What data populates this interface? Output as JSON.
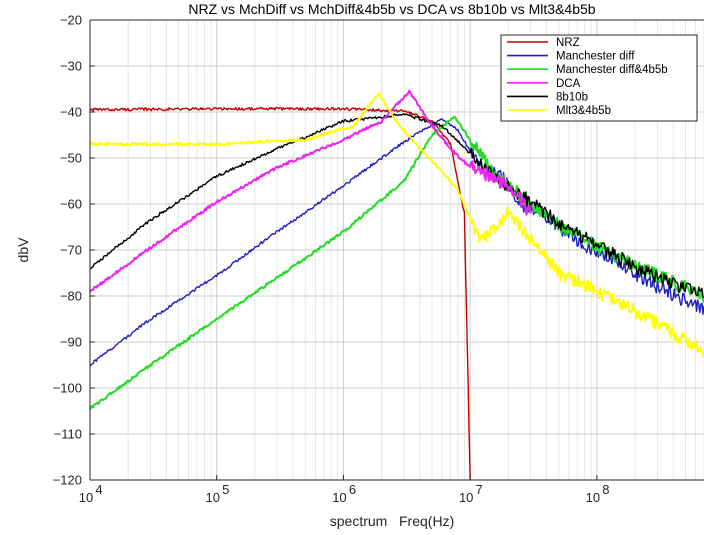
{
  "chart_data": {
    "type": "line",
    "title": "NRZ vs MchDiff vs MchDiff&4b5b vs DCA vs 8b10b vs Mlt3&4b5b",
    "xlabel": "spectrum   Freq(Hz)",
    "ylabel": "dbV",
    "xscale": "log",
    "xlim": [
      10000,
      700000000
    ],
    "ylim": [
      -120,
      -20
    ],
    "yticks": [
      -120,
      -110,
      -100,
      -90,
      -80,
      -70,
      -60,
      -50,
      -40,
      -30,
      -20
    ],
    "xticks": [
      {
        "value": 10000,
        "base": "10",
        "exp": "4"
      },
      {
        "value": 100000,
        "base": "10",
        "exp": "5"
      },
      {
        "value": 1000000,
        "base": "10",
        "exp": "6"
      },
      {
        "value": 10000000,
        "base": "10",
        "exp": "7"
      },
      {
        "value": 100000000,
        "base": "10",
        "exp": "8"
      }
    ],
    "grid": true,
    "legend_position": "top-right",
    "series": [
      {
        "name": "NRZ",
        "color": "#c00000",
        "points": [
          [
            10000,
            -39.5
          ],
          [
            100000,
            -39.3
          ],
          [
            1000000,
            -39.3
          ],
          [
            3000000,
            -39.8
          ],
          [
            5000000,
            -42
          ],
          [
            7000000,
            -47
          ],
          [
            9000000,
            -62
          ],
          [
            10000000,
            -120
          ]
        ]
      },
      {
        "name": "Manchester diff",
        "color": "#1f1fbf",
        "points": [
          [
            10000,
            -95
          ],
          [
            30000,
            -85
          ],
          [
            100000,
            -75.5
          ],
          [
            300000,
            -66
          ],
          [
            1000000,
            -56
          ],
          [
            3000000,
            -46.5
          ],
          [
            6000000,
            -41.5
          ],
          [
            8000000,
            -44
          ],
          [
            12000000,
            -52
          ],
          [
            18000000,
            -54
          ],
          [
            25000000,
            -60
          ],
          [
            40000000,
            -63
          ],
          [
            80000000,
            -69
          ],
          [
            150000000,
            -73
          ],
          [
            300000000,
            -78
          ],
          [
            700000000,
            -83
          ]
        ]
      },
      {
        "name": "Manchester diff&4b5b",
        "color": "#22dd22",
        "points": [
          [
            10000,
            -104.5
          ],
          [
            30000,
            -95
          ],
          [
            100000,
            -85
          ],
          [
            300000,
            -76
          ],
          [
            1000000,
            -66
          ],
          [
            3000000,
            -55
          ],
          [
            5000000,
            -45
          ],
          [
            7500000,
            -41
          ],
          [
            10000000,
            -46
          ],
          [
            15000000,
            -53
          ],
          [
            20000000,
            -56
          ],
          [
            30000000,
            -60
          ],
          [
            60000000,
            -66
          ],
          [
            150000000,
            -72
          ],
          [
            400000000,
            -77
          ],
          [
            700000000,
            -80
          ]
        ]
      },
      {
        "name": "DCA",
        "color": "#ee22ee",
        "points": [
          [
            10000,
            -79
          ],
          [
            30000,
            -69.5
          ],
          [
            100000,
            -59.5
          ],
          [
            300000,
            -52
          ],
          [
            1000000,
            -46
          ],
          [
            2000000,
            -42
          ],
          [
            3300000,
            -35.5
          ],
          [
            5000000,
            -43
          ],
          [
            7000000,
            -48
          ],
          [
            10000000,
            -52
          ],
          [
            14000000,
            -54
          ],
          [
            20000000,
            -56
          ],
          [
            30000000,
            -62
          ]
        ]
      },
      {
        "name": "8b10b",
        "color": "#000000",
        "points": [
          [
            10000,
            -74
          ],
          [
            30000,
            -63.5
          ],
          [
            100000,
            -54
          ],
          [
            300000,
            -48
          ],
          [
            1000000,
            -42
          ],
          [
            3000000,
            -40.5
          ],
          [
            6000000,
            -43
          ],
          [
            10000000,
            -49
          ],
          [
            15000000,
            -54
          ],
          [
            25000000,
            -58
          ],
          [
            50000000,
            -64
          ],
          [
            100000000,
            -69
          ],
          [
            250000000,
            -75
          ],
          [
            700000000,
            -80
          ]
        ]
      },
      {
        "name": "Mlt3&4b5b",
        "color": "#ffff00",
        "points": [
          [
            10000,
            -47
          ],
          [
            100000,
            -47
          ],
          [
            500000,
            -46
          ],
          [
            1200000,
            -43
          ],
          [
            1900000,
            -36
          ],
          [
            2600000,
            -42
          ],
          [
            4000000,
            -48
          ],
          [
            6000000,
            -53
          ],
          [
            8000000,
            -57
          ],
          [
            12000000,
            -68
          ],
          [
            20000000,
            -62
          ],
          [
            50000000,
            -75
          ],
          [
            100000000,
            -79
          ],
          [
            300000000,
            -86
          ],
          [
            700000000,
            -92
          ]
        ]
      }
    ]
  }
}
